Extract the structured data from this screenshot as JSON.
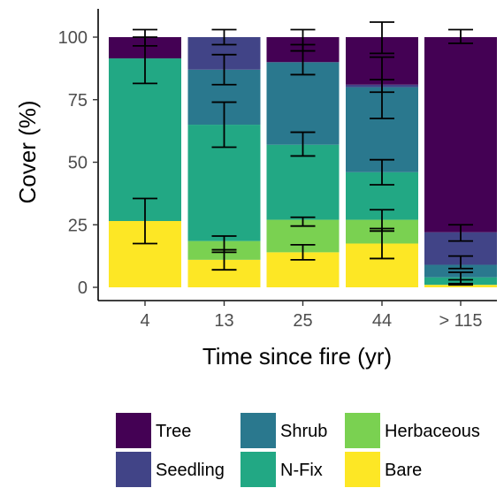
{
  "chart_data": {
    "type": "bar",
    "stacked": true,
    "categories": [
      "4",
      "13",
      "25",
      "44",
      "> 115"
    ],
    "xlabel": "Time since fire (yr)",
    "ylabel": "Cover (%)",
    "ylim": [
      0,
      100
    ],
    "yticks": [
      "0",
      "25",
      "50",
      "75",
      "100"
    ],
    "ytick_values": [
      0,
      25,
      50,
      75,
      100
    ],
    "grid": false,
    "legend_placement": "bottom",
    "series": [
      {
        "name": "Bare",
        "color": "#FDE725",
        "values": [
          26.5,
          11,
          14,
          17.5,
          1
        ],
        "error": [
          [
            17.5,
            35.5
          ],
          [
            7,
            15
          ],
          [
            11,
            17
          ],
          [
            11.5,
            23.5
          ],
          [
            1,
            3
          ]
        ]
      },
      {
        "name": "Herbaceous",
        "color": "#7AD151",
        "values": [
          0,
          7.5,
          13,
          9.5,
          0
        ],
        "error": [
          null,
          [
            14,
            20.5
          ],
          [
            24.5,
            28
          ],
          [
            22.5,
            31
          ],
          null
        ]
      },
      {
        "name": "N-Fix",
        "color": "#22A884",
        "values": [
          65,
          46.5,
          30,
          19,
          3
        ],
        "error": [
          [
            81.5,
            100
          ],
          [
            56,
            74
          ],
          [
            52.5,
            62
          ],
          [
            41,
            51
          ],
          [
            1.5,
            6
          ]
        ]
      },
      {
        "name": "Shrub",
        "color": "#2A788E",
        "values": [
          0,
          22,
          33,
          34,
          5
        ],
        "error": [
          null,
          [
            81,
            93
          ],
          [
            85,
            97
          ],
          [
            67.5,
            92
          ],
          [
            7.5,
            12.5
          ]
        ]
      },
      {
        "name": "Seedling",
        "color": "#414487",
        "values": [
          0,
          13,
          0,
          1,
          13
        ],
        "error": [
          null,
          [
            97,
            103
          ],
          null,
          [
            78,
            83
          ],
          [
            18.5,
            25
          ]
        ]
      },
      {
        "name": "Tree",
        "color": "#440154",
        "values": [
          8.5,
          0,
          10,
          19,
          78
        ],
        "error": [
          [
            96.5,
            103
          ],
          null,
          [
            94.5,
            103
          ],
          [
            93.5,
            106
          ],
          [
            97.5,
            103
          ]
        ]
      }
    ],
    "legend_order": [
      "Tree",
      "Shrub",
      "Herbaceous",
      "Seedling",
      "N-Fix",
      "Bare"
    ]
  }
}
